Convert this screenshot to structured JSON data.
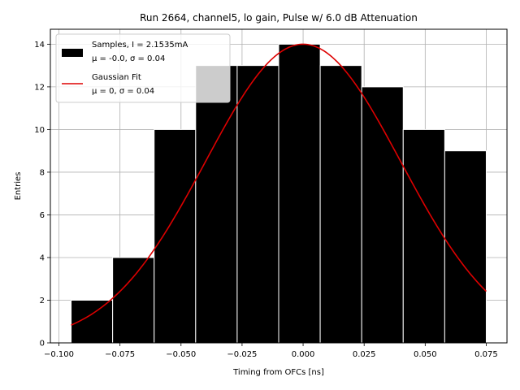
{
  "chart_data": {
    "type": "bar",
    "title": "Run 2664, channel5, lo gain, Pulse w/ 6.0 dB Attenuation",
    "xlabel": "Timing from OFCs [ns]",
    "ylabel": "Entries",
    "xlim": [
      -0.1035,
      0.0835
    ],
    "ylim": [
      0,
      14.7
    ],
    "xticks": [
      -0.1,
      -0.075,
      -0.05,
      -0.025,
      0.0,
      0.025,
      0.05,
      0.075
    ],
    "xtick_labels": [
      "−0.100",
      "−0.075",
      "−0.050",
      "−0.025",
      "0.000",
      "0.025",
      "0.050",
      "0.075"
    ],
    "yticks": [
      0,
      2,
      4,
      6,
      8,
      10,
      12,
      14
    ],
    "ytick_labels": [
      "0",
      "2",
      "4",
      "6",
      "8",
      "10",
      "12",
      "14"
    ],
    "grid": true,
    "legend_position": "top-left",
    "histogram": {
      "name": "Samples, I = 2.1535mA",
      "stats_label": "μ = -0.0, σ = 0.04",
      "color": "#000000",
      "edge_color": "#ffffff",
      "bin_edges": [
        -0.095,
        -0.078,
        -0.061,
        -0.044,
        -0.027,
        -0.01,
        0.007,
        0.024,
        0.041,
        0.058,
        0.075
      ],
      "counts": [
        2,
        4,
        10,
        13,
        13,
        14,
        13,
        12,
        10,
        9
      ]
    },
    "fit": {
      "name": "Gaussian Fit",
      "stats_label": "μ = 0, σ = 0.04",
      "color": "#dd0000",
      "amplitude": 14,
      "mean": 0.0,
      "sigma": 0.04,
      "x_range": [
        -0.095,
        0.075
      ]
    }
  }
}
